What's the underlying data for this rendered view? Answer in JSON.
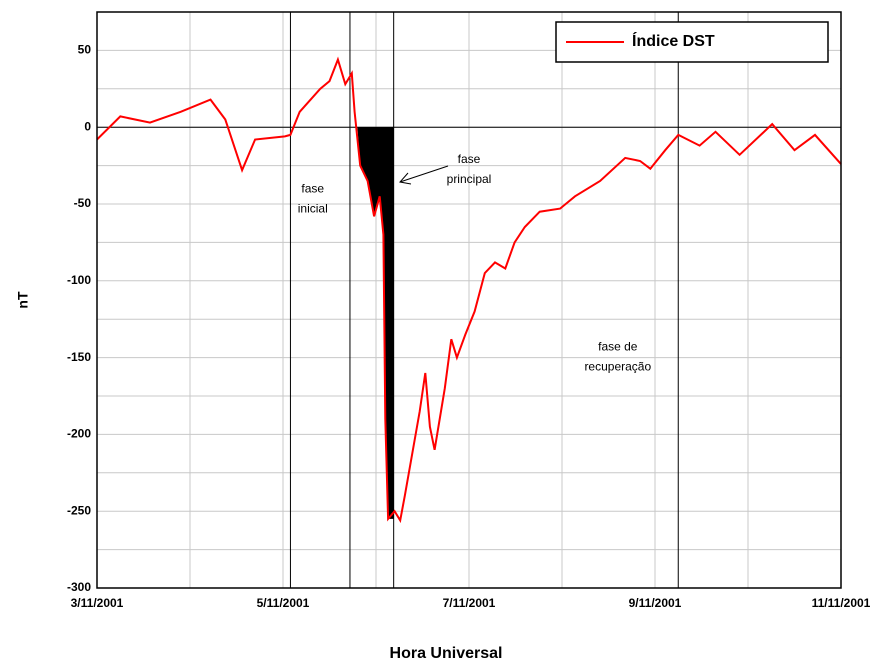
{
  "chart_data": {
    "type": "line",
    "x_label": "Hora Universal",
    "y_label": "nT",
    "xlim": [
      3,
      11
    ],
    "xticks": [
      {
        "value": 3,
        "label": "3/11/2001"
      },
      {
        "value": 5,
        "label": "5/11/2001"
      },
      {
        "value": 7,
        "label": "7/11/2001"
      },
      {
        "value": 9,
        "label": "9/11/2001"
      },
      {
        "value": 11,
        "label": "11/11/2001"
      }
    ],
    "minor_xticks": [
      4,
      6,
      8,
      10
    ],
    "ylim": [
      -300,
      75
    ],
    "yticks": [
      -300,
      -250,
      -200,
      -150,
      -100,
      -50,
      0,
      50
    ],
    "minor_yticks": [
      -275,
      -225,
      -175,
      -125,
      -75,
      -25,
      25,
      75
    ],
    "grid": true,
    "legend": "upper right",
    "phase_lines": [
      5.08,
      5.72,
      6.19,
      9.25
    ],
    "shade": [
      5.8,
      6.19
    ],
    "annotations": [
      {
        "lines": [
          "fase",
          "inicial"
        ],
        "x": 5.32,
        "y": -47
      },
      {
        "lines": [
          "fase",
          "principal"
        ],
        "x": 7.0,
        "y": -28
      },
      {
        "lines": [
          "fase de",
          "recuperação"
        ],
        "x": 8.6,
        "y": -150
      }
    ],
    "series": [
      {
        "name": "Índice DST",
        "color": "#ff0000",
        "x": [
          3.0,
          3.25,
          3.57,
          3.9,
          4.22,
          4.38,
          4.56,
          4.7,
          5.02,
          5.08,
          5.18,
          5.4,
          5.5,
          5.59,
          5.67,
          5.74,
          5.77,
          5.83,
          5.91,
          5.98,
          6.04,
          6.08,
          6.1,
          6.13,
          6.2,
          6.26,
          6.31,
          6.47,
          6.53,
          6.58,
          6.63,
          6.74,
          6.81,
          6.87,
          6.96,
          7.06,
          7.17,
          7.28,
          7.39,
          7.49,
          7.6,
          7.76,
          7.98,
          8.14,
          8.41,
          8.68,
          8.84,
          8.95,
          9.11,
          9.25,
          9.48,
          9.65,
          9.91,
          10.26,
          10.5,
          10.72,
          11.0
        ],
        "values": [
          -8,
          7,
          3,
          10,
          18,
          5,
          -28,
          -8,
          -6,
          -5,
          10,
          25,
          30,
          44,
          28,
          35,
          10,
          -25,
          -35,
          -58,
          -45,
          -70,
          -190,
          -255,
          -250,
          -256,
          -240,
          -185,
          -160,
          -195,
          -210,
          -170,
          -138,
          -150,
          -135,
          -120,
          -95,
          -88,
          -92,
          -75,
          -65,
          -55,
          -53,
          -45,
          -35,
          -20,
          -22,
          -27,
          -15,
          -5,
          -12,
          -3,
          -18,
          2,
          -15,
          -5,
          -24
        ]
      }
    ]
  }
}
